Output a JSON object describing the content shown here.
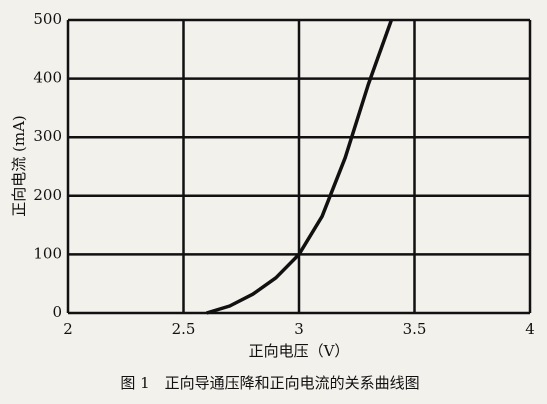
{
  "chart_data": {
    "type": "line",
    "x_label": "正向电压（V）",
    "y_label": "正向电流 (mA)",
    "caption": "图 1　正向导通压降和正向电流的关系曲线图",
    "x": [
      2.6,
      2.7,
      2.8,
      2.9,
      3.0,
      3.1,
      3.2,
      3.3,
      3.4
    ],
    "values": [
      0,
      12,
      32,
      60,
      100,
      165,
      265,
      390,
      500
    ],
    "color": "#111111",
    "xlim": [
      2,
      4
    ],
    "xticks": [
      2,
      2.5,
      3,
      3.5,
      4
    ],
    "ylim": [
      0,
      500
    ],
    "yticks": [
      0,
      100,
      200,
      300,
      400,
      500
    ],
    "grid": true
  }
}
